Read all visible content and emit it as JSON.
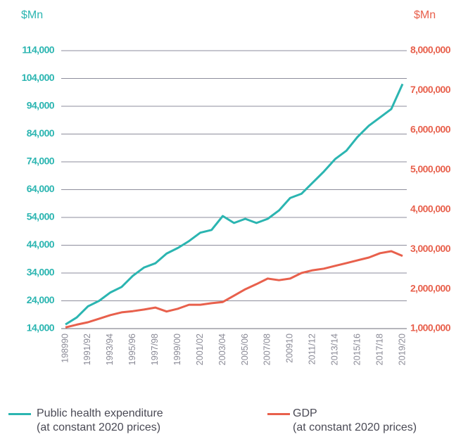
{
  "chart_data": {
    "type": "line",
    "y_label": "$Mn",
    "y2_label": "$Mn",
    "categories": [
      "198990",
      null,
      "1991/92",
      null,
      "1993/94",
      null,
      "1995/96",
      null,
      "1997/98",
      null,
      "1999/00",
      null,
      "2001/02",
      null,
      "2003/04",
      null,
      "2005/06",
      null,
      "2007/08",
      null,
      "200910",
      null,
      "2011/12",
      null,
      "2013/14",
      null,
      "2015/16",
      null,
      "2017/18",
      null,
      "2019/20"
    ],
    "series": [
      {
        "name": "Public health expenditure\n(at constant 2020 prices)",
        "color": "#2bb5b1",
        "axis": "y",
        "values": [
          15500,
          18000,
          22000,
          24000,
          27000,
          29000,
          33000,
          36000,
          37500,
          41000,
          43000,
          45500,
          48500,
          49500,
          54500,
          52000,
          53500,
          52000,
          53500,
          56500,
          61000,
          62500,
          66500,
          70500,
          75000,
          78000,
          83000,
          87000,
          90000,
          93000,
          102000
        ]
      },
      {
        "name": "GDP\n(at constant 2020 prices)",
        "color": "#e8604c",
        "axis": "y2",
        "values": [
          1030000,
          1100000,
          1160000,
          1250000,
          1340000,
          1410000,
          1440000,
          1480000,
          1530000,
          1430000,
          1500000,
          1600000,
          1600000,
          1640000,
          1670000,
          1830000,
          1990000,
          2120000,
          2260000,
          2220000,
          2260000,
          2400000,
          2470000,
          2510000,
          2580000,
          2650000,
          2720000,
          2790000,
          2900000,
          2950000,
          2830000
        ]
      }
    ],
    "ylim": [
      14000,
      114000
    ],
    "yticks": [
      {
        "value": 14000,
        "label": "14,000"
      },
      {
        "value": 24000,
        "label": "24,000"
      },
      {
        "value": 34000,
        "label": "34,000"
      },
      {
        "value": 44000,
        "label": "44,000"
      },
      {
        "value": 54000,
        "label": "54,000"
      },
      {
        "value": 64000,
        "label": "64,000"
      },
      {
        "value": 74000,
        "label": "74,000"
      },
      {
        "value": 84000,
        "label": "84,000"
      },
      {
        "value": 94000,
        "label": "94,000"
      },
      {
        "value": 104000,
        "label": "104,000"
      },
      {
        "value": 114000,
        "label": "114,000"
      }
    ],
    "y2lim": [
      1000000,
      8000000
    ],
    "y2ticks": [
      {
        "value": 1000000,
        "label": "1,000,000"
      },
      {
        "value": 2000000,
        "label": "2,000,000"
      },
      {
        "value": 3000000,
        "label": "3,000,000"
      },
      {
        "value": 4000000,
        "label": "4,000,000"
      },
      {
        "value": 5000000,
        "label": "5,000,000"
      },
      {
        "value": 6000000,
        "label": "6,000,000"
      },
      {
        "value": 7000000,
        "label": "7,000,000"
      },
      {
        "value": 8000000,
        "label": "8,000,000"
      }
    ],
    "grid": true
  }
}
